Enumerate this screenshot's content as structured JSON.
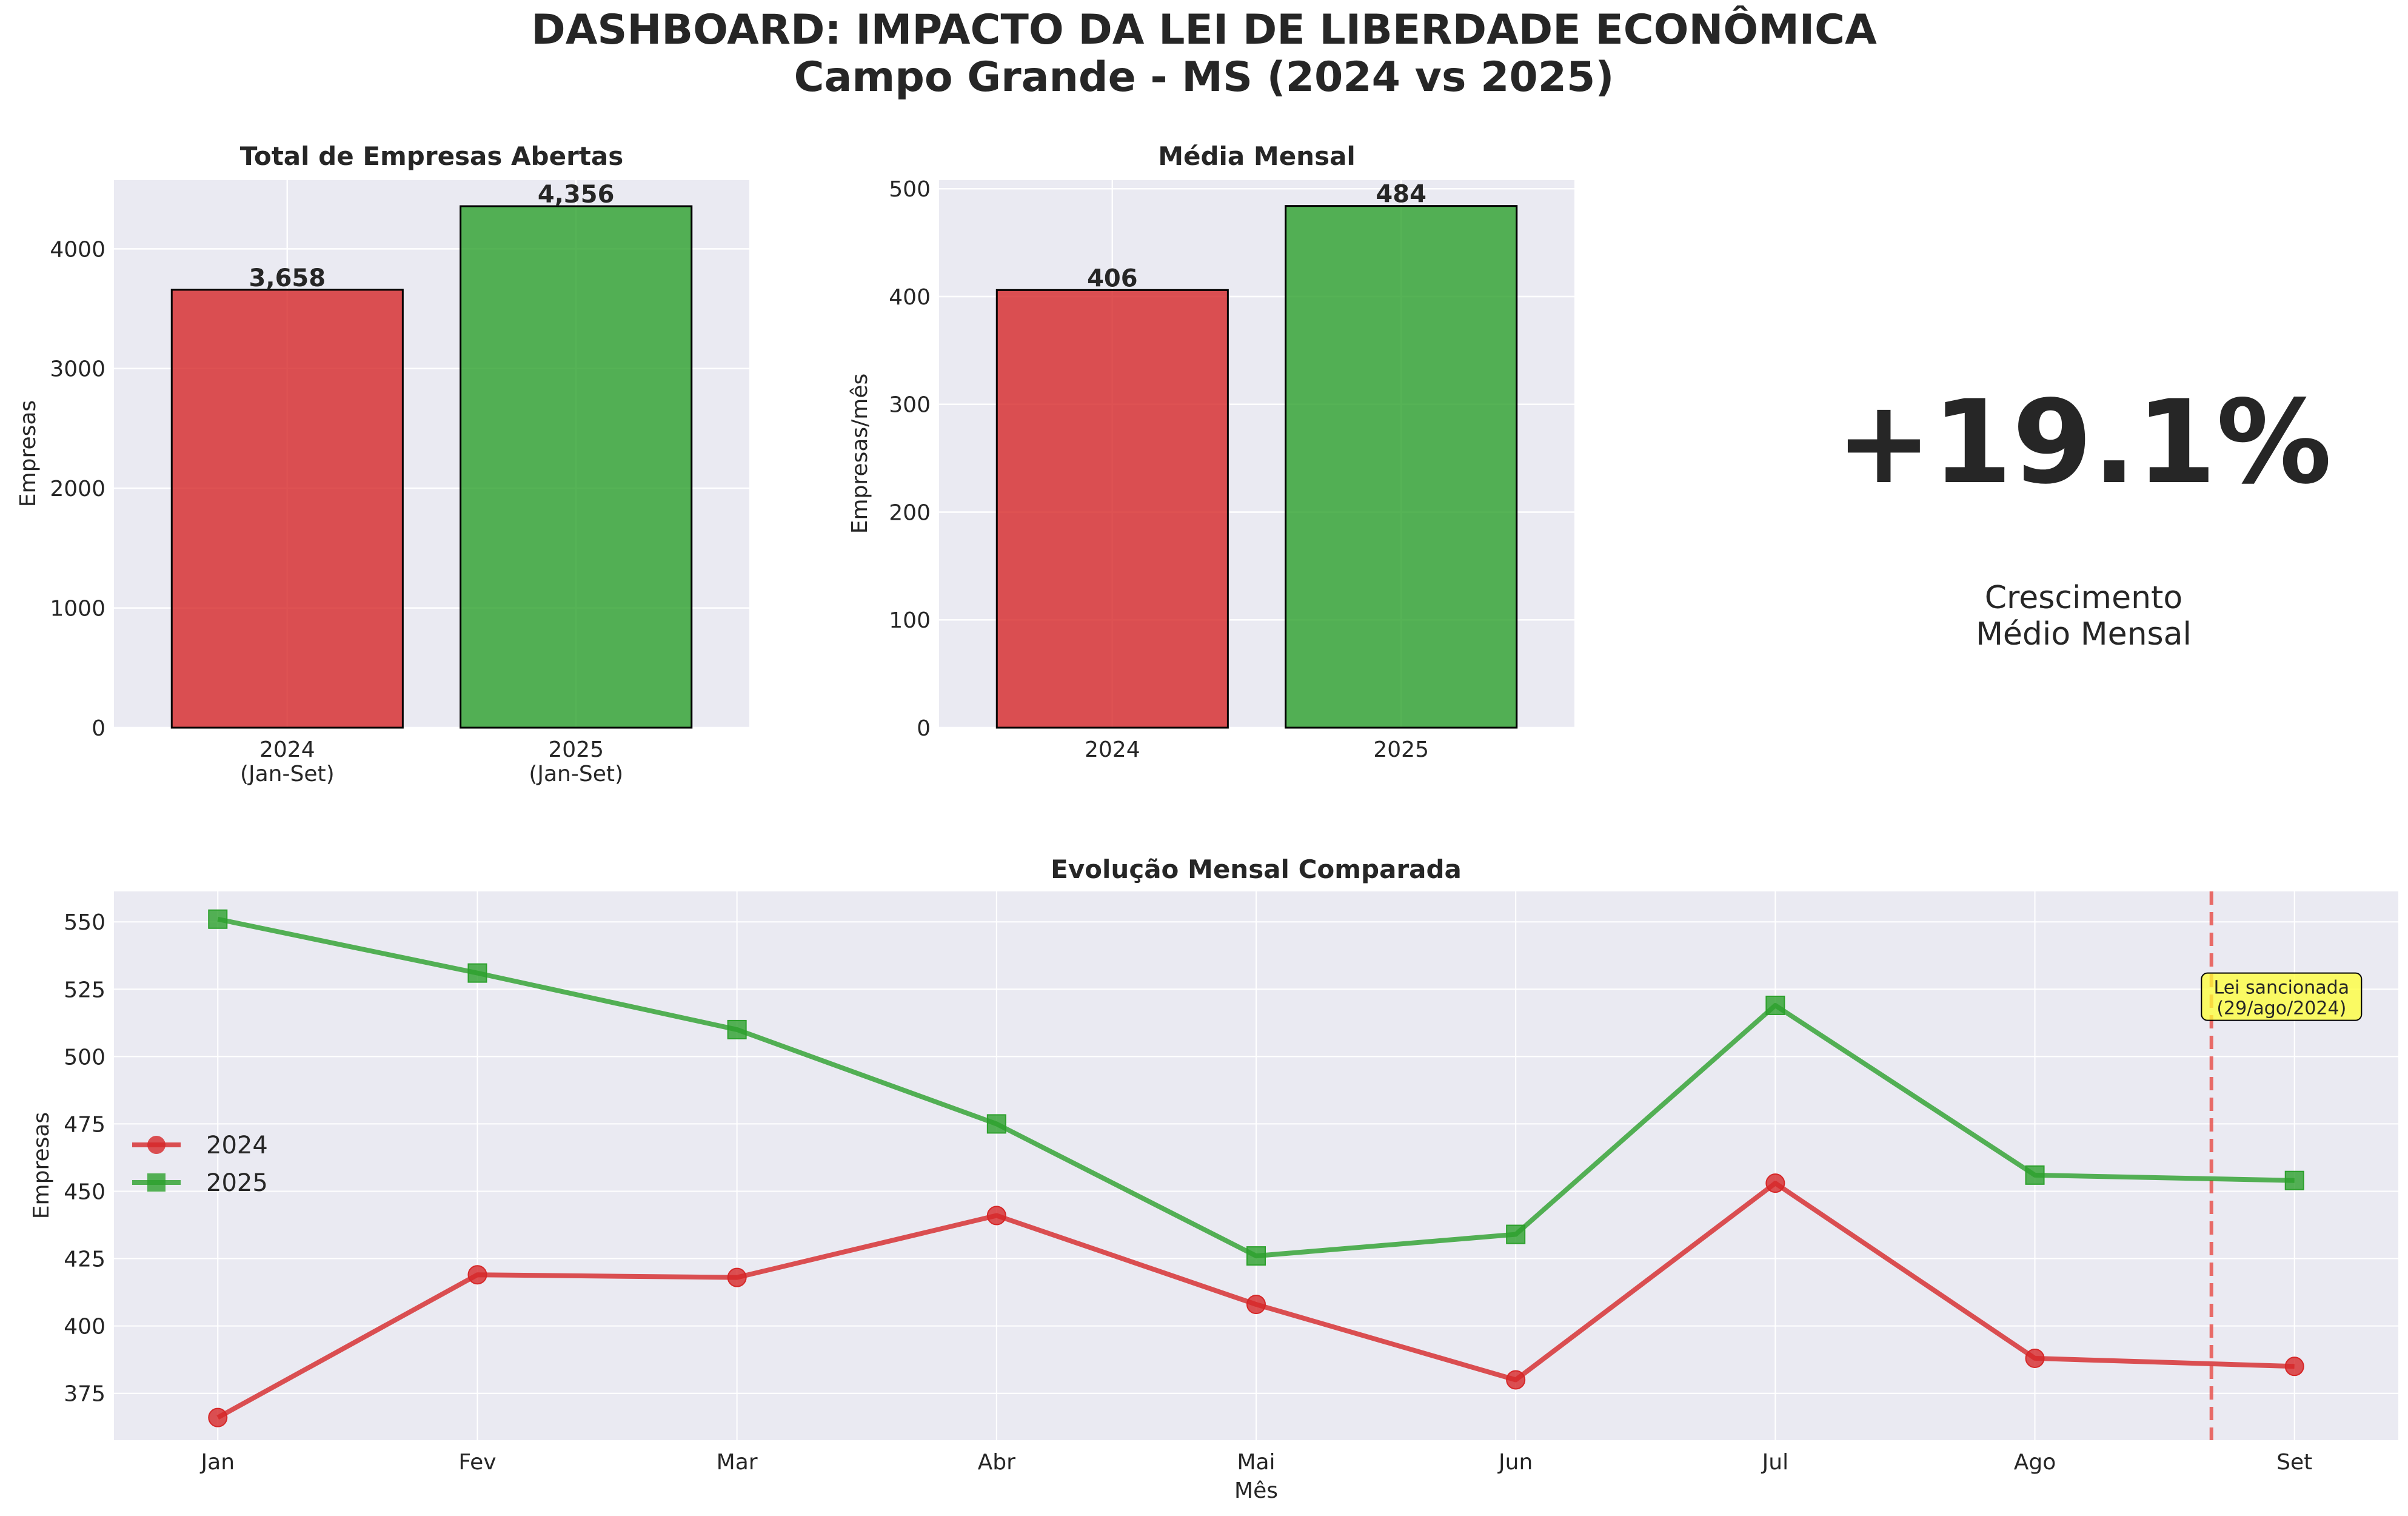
{
  "title": {
    "line1": "DASHBOARD: IMPACTO DA LEI DE LIBERDADE ECONÔMICA",
    "line2": "Campo Grande - MS (2024 vs 2025)"
  },
  "colors": {
    "red": "#d62728",
    "green": "#2ca02c",
    "kpi": "#2ca02c",
    "panel_bg": "#eaeaf2",
    "annotation_bg": "#ffff33",
    "vline": "#e8534f"
  },
  "kpi": {
    "value": "+19.1%",
    "label_line1": "Crescimento",
    "label_line2": "Médio Mensal"
  },
  "chart_data": [
    {
      "type": "bar",
      "title": "Total de Empresas Abertas",
      "ylabel": "Empresas",
      "xlabel": "",
      "categories": [
        [
          "2024",
          "(Jan-Set)"
        ],
        [
          "2025",
          "(Jan-Set)"
        ]
      ],
      "values": [
        3658,
        4356
      ],
      "value_labels": [
        "3,658",
        "4,356"
      ],
      "bar_colors": [
        "#d62728",
        "#2ca02c"
      ],
      "ylim": [
        0,
        4574
      ],
      "yticks": [
        0,
        1000,
        2000,
        3000,
        4000
      ],
      "grid": true
    },
    {
      "type": "bar",
      "title": "Média Mensal",
      "ylabel": "Empresas/mês",
      "xlabel": "",
      "categories": [
        [
          "2024"
        ],
        [
          "2025"
        ]
      ],
      "values": [
        406,
        484
      ],
      "value_labels": [
        "406",
        "484"
      ],
      "bar_colors": [
        "#d62728",
        "#2ca02c"
      ],
      "ylim": [
        0,
        508
      ],
      "yticks": [
        0,
        100,
        200,
        300,
        400,
        500
      ],
      "grid": true
    },
    {
      "type": "line",
      "title": "Evolução Mensal Comparada",
      "xlabel": "Mês",
      "ylabel": "Empresas",
      "categories": [
        "Jan",
        "Fev",
        "Mar",
        "Abr",
        "Mai",
        "Jun",
        "Jul",
        "Ago",
        "Set"
      ],
      "series": [
        {
          "name": "2024",
          "color": "#d62728",
          "marker": "circle",
          "values": [
            366,
            419,
            418,
            441,
            408,
            380,
            453,
            388,
            385
          ]
        },
        {
          "name": "2025",
          "color": "#2ca02c",
          "marker": "square",
          "values": [
            551,
            531,
            510,
            475,
            426,
            434,
            519,
            456,
            454
          ]
        }
      ],
      "xlim": [
        -0.4,
        8.4
      ],
      "ylim": [
        357.6,
        561.3
      ],
      "yticks": [
        375,
        400,
        425,
        450,
        475,
        500,
        525,
        550
      ],
      "legend": "center-left",
      "vline_x": 7.68,
      "annotation": {
        "line1": "Lei sancionada",
        "line2": "(29/ago/2024)",
        "x": 7.95,
        "y": 522
      },
      "grid": true
    }
  ]
}
